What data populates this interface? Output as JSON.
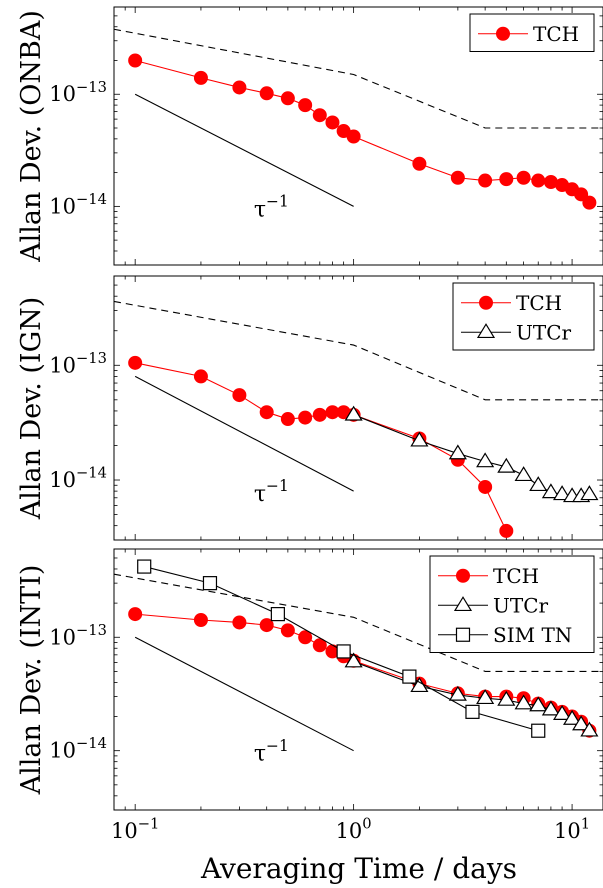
{
  "figure": {
    "xlabel": "Averaging Time / days",
    "x_tick_labels": [
      "10^-1",
      "10^0",
      "10^1"
    ],
    "y_tick_labels": [
      "10^-13",
      "10^-14"
    ],
    "slope_label": "τ^-1"
  },
  "chart_data": [
    {
      "type": "line",
      "ylabel": "Allan Dev. (ONBA)",
      "xscale": "log",
      "yscale": "log",
      "xlim": [
        0.08,
        14
      ],
      "ylim": [
        3e-15,
        6e-13
      ],
      "legend": "top-right",
      "series": [
        {
          "name": "TCH",
          "style": "tch",
          "x": [
            0.1,
            0.2,
            0.3,
            0.4,
            0.5,
            0.6,
            0.7,
            0.8,
            0.9,
            1.0,
            2.0,
            3.0,
            4.0,
            5.0,
            6.0,
            7.0,
            8.0,
            9.0,
            10.0,
            11.0,
            12.0
          ],
          "y": [
            2e-13,
            1.4e-13,
            1.15e-13,
            1.02e-13,
            9.2e-14,
            8e-14,
            6.5e-14,
            5.6e-14,
            4.7e-14,
            4.2e-14,
            2.4e-14,
            1.8e-14,
            1.7e-14,
            1.75e-14,
            1.8e-14,
            1.7e-14,
            1.65e-14,
            1.55e-14,
            1.42e-14,
            1.28e-14,
            1.08e-14
          ]
        }
      ],
      "bound": {
        "x": [
          0.08,
          1.0,
          4.0,
          14.0
        ],
        "y": [
          3.8e-13,
          1.5e-13,
          5e-14,
          5e-14
        ]
      },
      "slope": {
        "x": [
          0.1,
          1.0
        ],
        "y": [
          1e-13,
          1e-14
        ]
      }
    },
    {
      "type": "line",
      "ylabel": "Allan Dev. (IGN)",
      "xscale": "log",
      "yscale": "log",
      "xlim": [
        0.08,
        14
      ],
      "ylim": [
        3e-15,
        6e-13
      ],
      "legend": "top-right",
      "series": [
        {
          "name": "TCH",
          "style": "tch",
          "x": [
            0.1,
            0.2,
            0.3,
            0.4,
            0.5,
            0.6,
            0.7,
            0.8,
            0.9,
            1.0,
            2.0,
            3.0,
            4.0,
            5.0
          ],
          "y": [
            1.05e-13,
            8e-14,
            5.5e-14,
            3.9e-14,
            3.4e-14,
            3.5e-14,
            3.7e-14,
            3.9e-14,
            3.9e-14,
            3.7e-14,
            2.3e-14,
            1.5e-14,
            8.7e-15,
            3.6e-15
          ]
        },
        {
          "name": "UTCr",
          "style": "tri",
          "x": [
            1.0,
            2.0,
            3.0,
            4.0,
            5.0,
            6.0,
            7.0,
            8.0,
            9.0,
            10.0,
            11.0,
            12.0
          ],
          "y": [
            3.7e-14,
            2.2e-14,
            1.7e-14,
            1.45e-14,
            1.3e-14,
            1.1e-14,
            9e-15,
            7.8e-15,
            7.5e-15,
            7.2e-15,
            7.2e-15,
            7.5e-15
          ]
        }
      ],
      "bound": {
        "x": [
          0.08,
          1.0,
          4.0,
          14.0
        ],
        "y": [
          3.6e-13,
          1.5e-13,
          5e-14,
          5e-14
        ]
      },
      "slope": {
        "x": [
          0.1,
          1.0
        ],
        "y": [
          8e-14,
          8e-15
        ]
      }
    },
    {
      "type": "line",
      "ylabel": "Allan Dev. (INTI)",
      "xscale": "log",
      "yscale": "log",
      "xlim": [
        0.08,
        14
      ],
      "ylim": [
        3e-15,
        6e-13
      ],
      "legend": "top-right",
      "series": [
        {
          "name": "TCH",
          "style": "tch",
          "x": [
            0.1,
            0.2,
            0.3,
            0.4,
            0.5,
            0.6,
            0.7,
            0.8,
            0.9,
            1.0,
            2.0,
            3.0,
            4.0,
            5.0,
            6.0,
            7.0,
            8.0,
            9.0,
            10.0,
            11.0,
            12.0
          ],
          "y": [
            1.6e-13,
            1.42e-13,
            1.35e-13,
            1.28e-13,
            1.15e-13,
            1e-13,
            8.5e-14,
            7.5e-14,
            6.8e-14,
            6.2e-14,
            3.9e-14,
            3.2e-14,
            3e-14,
            3e-14,
            2.9e-14,
            2.6e-14,
            2.4e-14,
            2.2e-14,
            2e-14,
            1.8e-14,
            1.5e-14
          ]
        },
        {
          "name": "UTCr",
          "style": "tri",
          "x": [
            1.0,
            2.0,
            3.0,
            4.0,
            5.0,
            6.0,
            7.0,
            8.0,
            9.0,
            10.0,
            11.0,
            12.0
          ],
          "y": [
            6.1e-14,
            3.7e-14,
            3.1e-14,
            2.9e-14,
            2.8e-14,
            2.6e-14,
            2.5e-14,
            2.3e-14,
            2.1e-14,
            1.9e-14,
            1.7e-14,
            1.5e-14
          ]
        },
        {
          "name": "SIM TN",
          "style": "sq",
          "x": [
            0.11,
            0.22,
            0.45,
            0.9,
            1.8,
            3.5,
            7.0
          ],
          "y": [
            4.2e-13,
            3e-13,
            1.6e-13,
            7.5e-14,
            4.5e-14,
            2.2e-14,
            1.5e-14
          ]
        }
      ],
      "bound": {
        "x": [
          0.08,
          1.0,
          4.0,
          14.0
        ],
        "y": [
          3.6e-13,
          1.5e-13,
          5e-14,
          5e-14
        ]
      },
      "slope": {
        "x": [
          0.1,
          1.0
        ],
        "y": [
          1e-13,
          1e-14
        ]
      }
    }
  ]
}
